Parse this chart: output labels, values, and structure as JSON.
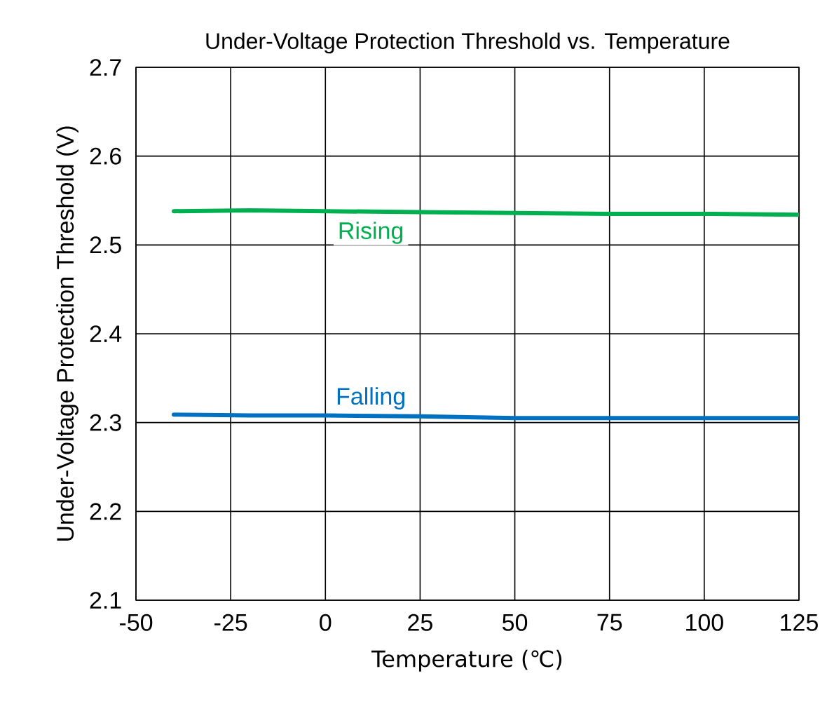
{
  "chart_data": {
    "type": "line",
    "title": "Under-Voltage Protection Threshold vs. Temperature",
    "xlabel": "Temperature (℃)",
    "ylabel": "Under-Voltage Protection Threshold (V)",
    "series": [
      {
        "name": "Rising",
        "color": "#00b050",
        "x": [
          -40,
          -20,
          0,
          25,
          50,
          75,
          100,
          125
        ],
        "values": [
          2.538,
          2.539,
          2.538,
          2.537,
          2.536,
          2.535,
          2.535,
          2.534
        ]
      },
      {
        "name": "Falling",
        "color": "#0070c0",
        "x": [
          -40,
          -20,
          0,
          25,
          50,
          75,
          100,
          125
        ],
        "values": [
          2.309,
          2.308,
          2.308,
          2.307,
          2.305,
          2.305,
          2.305,
          2.305
        ]
      }
    ],
    "xlim": [
      -50,
      125
    ],
    "xticks": [
      -50,
      -25,
      0,
      25,
      50,
      75,
      100,
      125
    ],
    "ylim": [
      2.1,
      2.7
    ],
    "yticks": [
      2.1,
      2.2,
      2.3,
      2.4,
      2.5,
      2.6,
      2.7
    ],
    "grid": true,
    "marker": "none",
    "line_style": "solid"
  }
}
